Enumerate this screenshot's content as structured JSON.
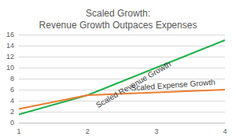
{
  "chart_data": {
    "type": "line",
    "title": "Scaled Growth:\nRevenue Growth Outpaces Expenses",
    "categories": [
      "1",
      "2",
      "3",
      "4"
    ],
    "series": [
      {
        "name": "Scaled Revenue Growth",
        "color": "#22b14c",
        "values": [
          1.5,
          5,
          10,
          15
        ]
      },
      {
        "name": "Scaled Expense Growth",
        "color": "#ed7d31",
        "values": [
          2.5,
          5,
          5.5,
          6
        ]
      }
    ],
    "ylim": [
      0,
      16
    ],
    "yticks": [
      0,
      2,
      4,
      6,
      8,
      10,
      12,
      14,
      16
    ],
    "grid": true
  }
}
